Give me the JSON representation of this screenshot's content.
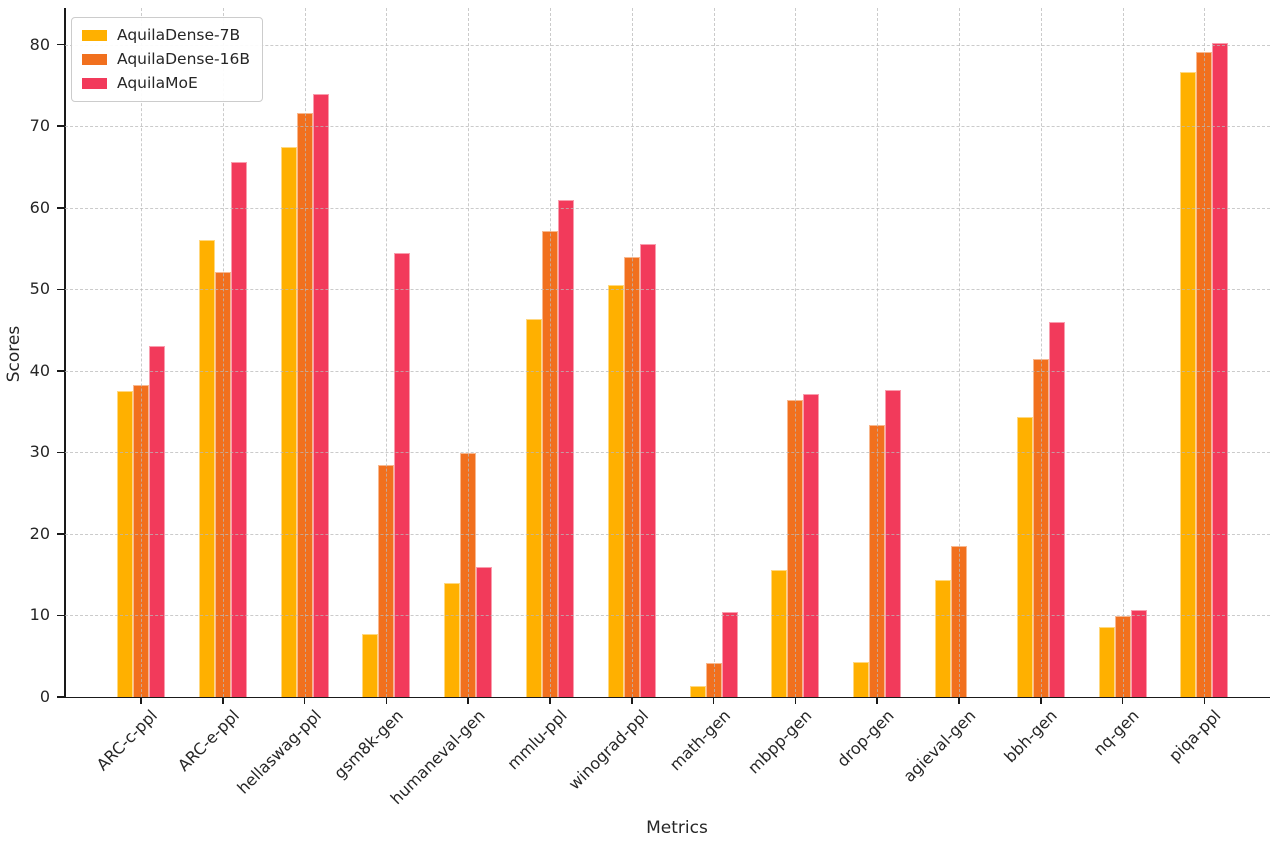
{
  "figure": {
    "xlabel": "Metrics",
    "ylabel": "Scores",
    "background_color": "#ffffff",
    "axis_color": "#1a1a1a",
    "grid_color": "#b9b9b9",
    "text_color": "#262626"
  },
  "chart_data": {
    "type": "bar",
    "title": "",
    "xlabel": "Metrics",
    "ylabel": "Scores",
    "grid": true,
    "grid_style": "dashed",
    "legend_position": "upper left",
    "ylim": [
      0,
      84.5
    ],
    "yticks": [
      0,
      10,
      20,
      30,
      40,
      50,
      60,
      70,
      80
    ],
    "categories": [
      "ARC-c-ppl",
      "ARC-e-ppl",
      "hellaswag-ppl",
      "gsm8k-gen",
      "humaneval-gen",
      "mmlu-ppl",
      "winograd-ppl",
      "math-gen",
      "mbpp-gen",
      "drop-gen",
      "agieval-gen",
      "bbh-gen",
      "nq-gen",
      "piqa-ppl"
    ],
    "series": [
      {
        "name": "AquilaDense-7B",
        "color": "#FFB000",
        "values": [
          37.5,
          56.0,
          67.4,
          7.7,
          14.0,
          46.4,
          50.5,
          1.3,
          15.6,
          4.3,
          14.4,
          34.4,
          8.6,
          76.6
        ]
      },
      {
        "name": "AquilaDense-16B",
        "color": "#F1701E",
        "values": [
          38.3,
          52.1,
          71.6,
          28.4,
          29.9,
          57.1,
          54.0,
          4.2,
          36.4,
          33.3,
          18.5,
          41.5,
          9.9,
          79.1
        ]
      },
      {
        "name": "AquilaMoE",
        "color": "#F23A5B",
        "values": [
          43.0,
          65.6,
          73.9,
          54.4,
          15.9,
          61.0,
          55.5,
          10.4,
          37.2,
          37.6,
          0,
          46.0,
          10.7,
          80.2
        ]
      }
    ]
  }
}
